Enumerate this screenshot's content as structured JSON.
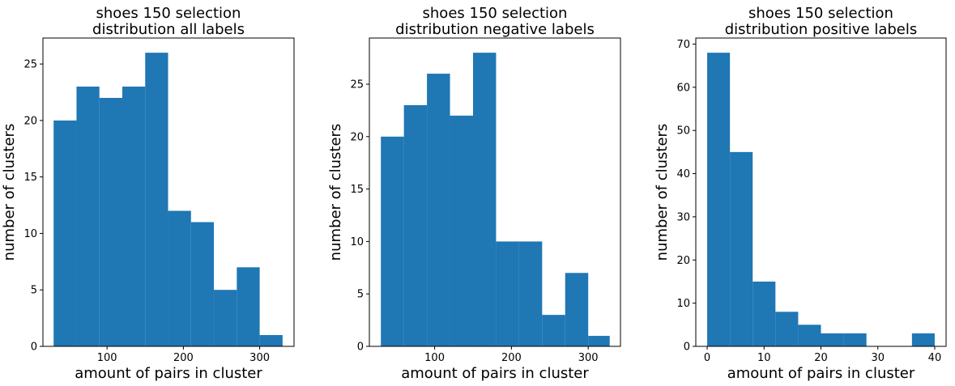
{
  "chart_data": [
    {
      "type": "bar",
      "title": "shoes 150 selection\ndistribution all labels",
      "xlabel": "amount of pairs in cluster",
      "ylabel": "number of clusters",
      "xlim": [
        16,
        345
      ],
      "ylim": [
        0,
        27.3
      ],
      "xticks": [
        100,
        200,
        300
      ],
      "yticks": [
        0,
        5,
        10,
        15,
        20,
        25
      ],
      "bin_edges": [
        30,
        60,
        90,
        120,
        150,
        180,
        210,
        240,
        270,
        300,
        330
      ],
      "values": [
        20,
        23,
        22,
        23,
        26,
        12,
        11,
        5,
        7,
        1
      ],
      "color": "#1f77b4"
    },
    {
      "type": "bar",
      "title": "shoes 150 selection\ndistribution negative labels",
      "xlabel": "amount of pairs in cluster",
      "ylabel": "number of clusters",
      "xlim": [
        15,
        342
      ],
      "ylim": [
        0,
        29.4
      ],
      "xticks": [
        100,
        200,
        300
      ],
      "yticks": [
        0,
        5,
        10,
        15,
        20,
        25
      ],
      "bin_edges": [
        30,
        60,
        90,
        120,
        150,
        180,
        210,
        240,
        270,
        300,
        328
      ],
      "values": [
        20,
        23,
        26,
        22,
        28,
        10,
        10,
        3,
        7,
        1
      ],
      "color": "#1f77b4"
    },
    {
      "type": "bar",
      "title": "shoes 150 selection\ndistribution positive labels",
      "xlabel": "amount of pairs in cluster",
      "ylabel": "number of clusters",
      "xlim": [
        -2,
        42
      ],
      "ylim": [
        0,
        71.4
      ],
      "xticks": [
        0,
        10,
        20,
        30,
        40
      ],
      "yticks": [
        0,
        10,
        20,
        30,
        40,
        50,
        60,
        70
      ],
      "bin_edges": [
        0,
        4,
        8,
        12,
        16,
        20,
        24,
        28,
        32,
        36,
        40
      ],
      "values": [
        68,
        45,
        15,
        8,
        5,
        3,
        3,
        0,
        0,
        3
      ],
      "color": "#1f77b4"
    }
  ]
}
